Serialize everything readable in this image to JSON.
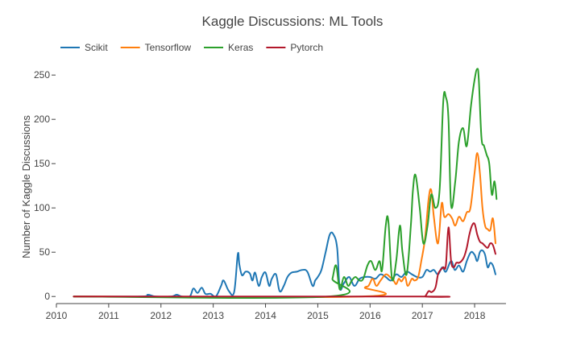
{
  "chart_data": {
    "type": "line",
    "title": "Kaggle Discussions: ML Tools",
    "xlabel": "",
    "ylabel": "Number of Kaggle Discussions",
    "xlim": [
      2010.0,
      2018.6
    ],
    "ylim": [
      -8,
      262
    ],
    "x_ticks": [
      2010,
      2011,
      2012,
      2013,
      2014,
      2015,
      2016,
      2017,
      2018
    ],
    "y_ticks": [
      0,
      50,
      100,
      150,
      200,
      250
    ],
    "grid": false,
    "legend_position": "top-left",
    "series": [
      {
        "name": "Scikit",
        "color": "#1f77b4",
        "x": [
          2010.33,
          2011.6,
          2011.75,
          2011.9,
          2012.2,
          2012.3,
          2012.4,
          2012.55,
          2012.62,
          2012.7,
          2012.78,
          2012.85,
          2012.95,
          2013.05,
          2013.15,
          2013.2,
          2013.3,
          2013.4,
          2013.47,
          2013.5,
          2013.55,
          2013.62,
          2013.7,
          2013.75,
          2013.8,
          2013.87,
          2013.93,
          2014.0,
          2014.07,
          2014.12,
          2014.2,
          2014.27,
          2014.35,
          2014.42,
          2014.5,
          2014.6,
          2014.7,
          2014.8,
          2014.9,
          2014.95,
          2015.0,
          2015.07,
          2015.15,
          2015.23,
          2015.3,
          2015.37,
          2015.42,
          2015.5,
          2015.6,
          2015.7,
          2015.8,
          2015.9,
          2016.0,
          2016.1,
          2016.2,
          2016.3,
          2016.4,
          2016.5,
          2016.6,
          2016.7,
          2016.8,
          2016.9,
          2017.0,
          2017.08,
          2017.15,
          2017.22,
          2017.3,
          2017.38,
          2017.45,
          2017.55,
          2017.62,
          2017.7,
          2017.78,
          2017.85,
          2017.93,
          2018.0,
          2018.05,
          2018.1,
          2018.15,
          2018.2,
          2018.25,
          2018.3,
          2018.35,
          2018.4
        ],
        "values": [
          0,
          0,
          2,
          0,
          0,
          2,
          0,
          0,
          9,
          4,
          10,
          3,
          3,
          0,
          12,
          18,
          6,
          5,
          48,
          36,
          24,
          28,
          26,
          18,
          27,
          12,
          22,
          27,
          12,
          20,
          25,
          6,
          12,
          22,
          27,
          28,
          30,
          28,
          12,
          18,
          22,
          30,
          50,
          70,
          70,
          55,
          10,
          15,
          22,
          12,
          20,
          22,
          22,
          20,
          25,
          22,
          18,
          25,
          22,
          28,
          25,
          22,
          22,
          30,
          28,
          30,
          25,
          33,
          28,
          40,
          30,
          35,
          28,
          40,
          50,
          47,
          40,
          50,
          52,
          47,
          33,
          38,
          35,
          25
        ]
      },
      {
        "name": "Tensorflow",
        "color": "#ff7f0e",
        "x": [
          2010.33,
          2015.85,
          2015.9,
          2015.97,
          2016.05,
          2016.12,
          2016.2,
          2016.3,
          2016.38,
          2016.45,
          2016.5,
          2016.55,
          2016.6,
          2016.67,
          2016.72,
          2016.8,
          2016.85,
          2016.92,
          2016.98,
          2017.05,
          2017.12,
          2017.17,
          2017.22,
          2017.3,
          2017.37,
          2017.42,
          2017.5,
          2017.57,
          2017.63,
          2017.7,
          2017.78,
          2017.85,
          2017.92,
          2018.0,
          2018.05,
          2018.1,
          2018.15,
          2018.2,
          2018.25,
          2018.3,
          2018.35,
          2018.4
        ],
        "values": [
          0,
          0,
          10,
          12,
          20,
          12,
          18,
          25,
          22,
          18,
          14,
          20,
          17,
          22,
          12,
          20,
          18,
          22,
          40,
          65,
          110,
          120,
          90,
          60,
          105,
          90,
          93,
          88,
          80,
          90,
          85,
          95,
          100,
          140,
          162,
          140,
          100,
          80,
          76,
          75,
          88,
          60
        ]
      },
      {
        "name": "Keras",
        "color": "#2ca02c",
        "x": [
          2010.33,
          2015.2,
          2015.28,
          2015.35,
          2015.42,
          2015.5,
          2015.58,
          2015.65,
          2015.72,
          2015.8,
          2015.87,
          2015.95,
          2016.02,
          2016.1,
          2016.18,
          2016.23,
          2016.3,
          2016.35,
          2016.42,
          2016.5,
          2016.57,
          2016.62,
          2016.7,
          2016.78,
          2016.82,
          2016.87,
          2016.95,
          2017.02,
          2017.1,
          2017.17,
          2017.25,
          2017.33,
          2017.4,
          2017.45,
          2017.5,
          2017.55,
          2017.63,
          2017.7,
          2017.78,
          2017.85,
          2017.93,
          2018.0,
          2018.05,
          2018.08,
          2018.13,
          2018.18,
          2018.23,
          2018.28,
          2018.33,
          2018.38,
          2018.42
        ],
        "values": [
          0,
          0,
          20,
          35,
          8,
          22,
          12,
          18,
          22,
          18,
          20,
          35,
          40,
          30,
          40,
          30,
          80,
          85,
          20,
          40,
          80,
          50,
          25,
          80,
          120,
          137,
          100,
          60,
          80,
          115,
          100,
          120,
          220,
          225,
          200,
          103,
          130,
          175,
          190,
          170,
          215,
          245,
          257,
          245,
          180,
          170,
          160,
          150,
          115,
          130,
          110
        ]
      },
      {
        "name": "Pytorch",
        "color": "#b2182b",
        "x": [
          2010.33,
          2016.97,
          2017.05,
          2017.12,
          2017.18,
          2017.25,
          2017.3,
          2017.35,
          2017.4,
          2017.45,
          2017.5,
          2017.55,
          2017.6,
          2017.65,
          2017.7,
          2017.75,
          2017.8,
          2017.85,
          2017.9,
          2017.95,
          2018.0,
          2018.05,
          2018.1,
          2018.15,
          2018.2,
          2018.25,
          2018.3,
          2018.35,
          2018.4
        ],
        "values": [
          0,
          0,
          0,
          6,
          5,
          10,
          25,
          30,
          33,
          35,
          78,
          40,
          33,
          38,
          38,
          40,
          45,
          55,
          70,
          80,
          82,
          70,
          62,
          60,
          57,
          55,
          60,
          58,
          48
        ]
      }
    ]
  }
}
